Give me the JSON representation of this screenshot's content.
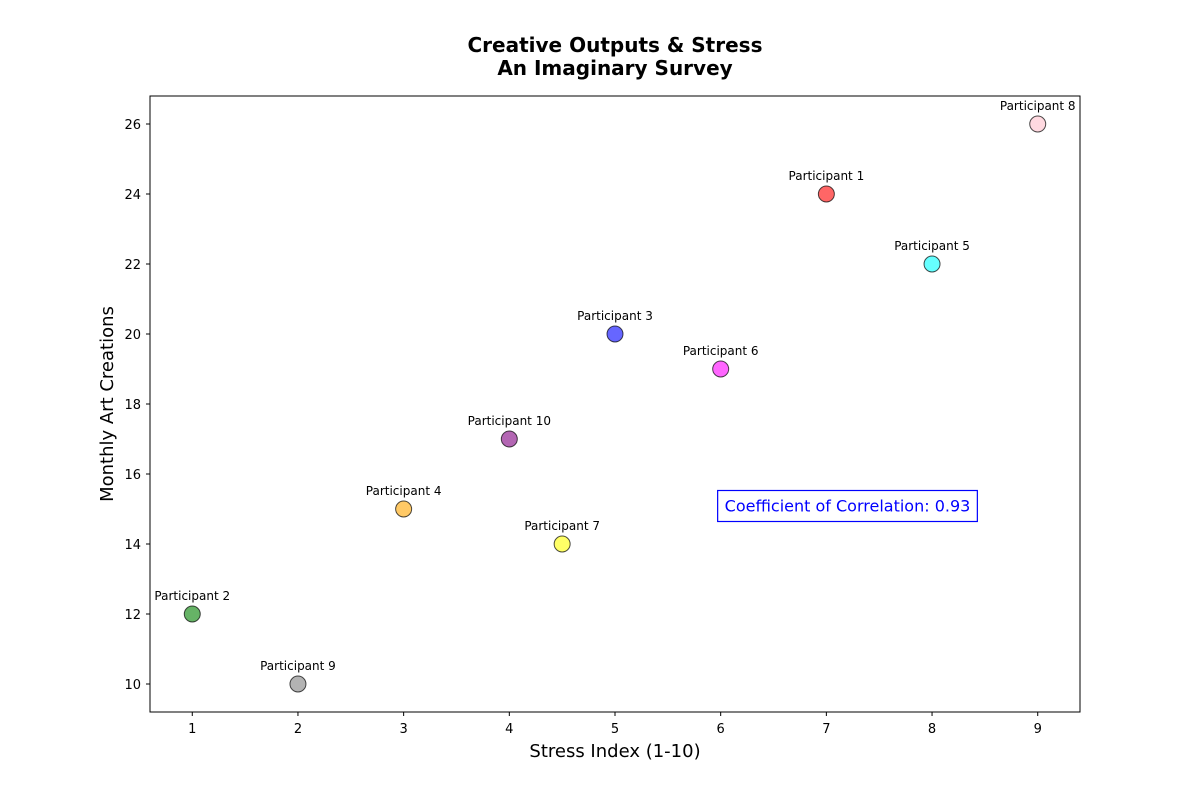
{
  "chart_data": {
    "type": "scatter",
    "title": "Creative Outputs & Stress",
    "subtitle": "An Imaginary Survey",
    "xlabel": "Stress Index (1-10)",
    "ylabel": "Monthly Art Creations",
    "xlim": [
      0.6,
      9.4
    ],
    "ylim": [
      9.2,
      26.8
    ],
    "xticks": [
      1,
      2,
      3,
      4,
      5,
      6,
      7,
      8,
      9
    ],
    "yticks": [
      10,
      12,
      14,
      16,
      18,
      20,
      22,
      24,
      26
    ],
    "grid": false,
    "points": [
      {
        "label": "Participant 1",
        "x": 7,
        "y": 24,
        "color": "#ff0000"
      },
      {
        "label": "Participant 2",
        "x": 1,
        "y": 12,
        "color": "#008000"
      },
      {
        "label": "Participant 3",
        "x": 5,
        "y": 20,
        "color": "#0000ff"
      },
      {
        "label": "Participant 4",
        "x": 3,
        "y": 15,
        "color": "#ffa500"
      },
      {
        "label": "Participant 5",
        "x": 8,
        "y": 22,
        "color": "#00ffff"
      },
      {
        "label": "Participant 6",
        "x": 6,
        "y": 19,
        "color": "#ff00ff"
      },
      {
        "label": "Participant 7",
        "x": 4.5,
        "y": 14,
        "color": "#ffff00"
      },
      {
        "label": "Participant 8",
        "x": 9,
        "y": 26,
        "color": "#ffc0cb"
      },
      {
        "label": "Participant 9",
        "x": 2,
        "y": 10,
        "color": "#808080"
      },
      {
        "label": "Participant 10",
        "x": 4,
        "y": 17,
        "color": "#800080"
      }
    ],
    "annotation": {
      "text": "Coefficient of Correlation: 0.93",
      "x": 7.2,
      "y": 15.1,
      "color": "#0000ff"
    }
  }
}
